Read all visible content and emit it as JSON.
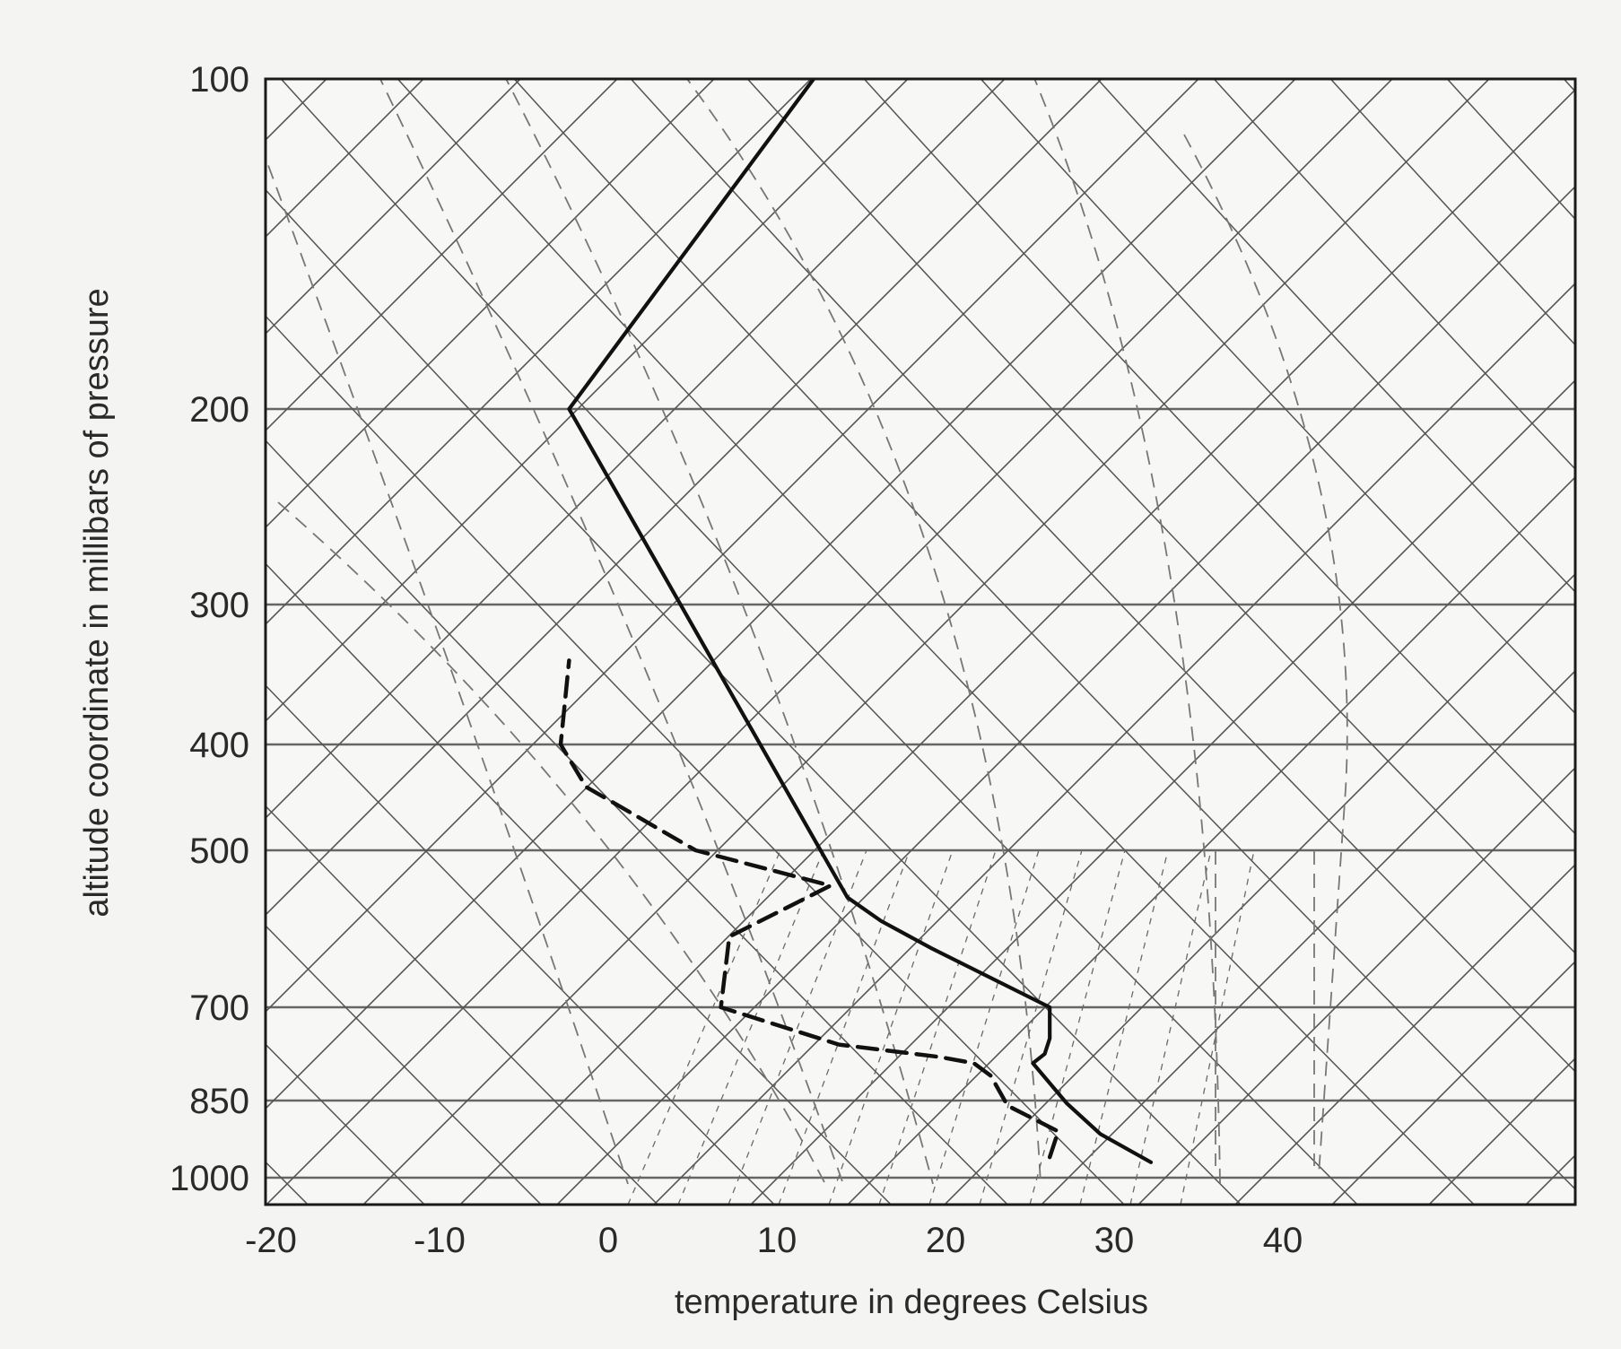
{
  "chart_data": {
    "type": "line",
    "title": "",
    "xlabel": "temperature in degrees Celsius",
    "ylabel": "altitude coordinate in millibars of pressure",
    "xlim": [
      -20,
      50
    ],
    "ylim": [
      1000,
      100
    ],
    "x_ticks": [
      -20,
      -10,
      0,
      10,
      20,
      30,
      40
    ],
    "y_ticks": [
      100,
      200,
      300,
      400,
      500,
      700,
      850,
      1000
    ],
    "y_scale": "skew-T log-p (pressure levels)",
    "grid": true,
    "colors": {
      "background": "#f4f4f2",
      "frame": "#1a1a1a",
      "grid": "#555555",
      "dashed_grid": "#777777",
      "temperature_line": "#111111",
      "dewpoint_line": "#111111"
    },
    "series": [
      {
        "style": "solid",
        "points": [
          {
            "t": 32.5,
            "p": 970
          },
          {
            "t": 29.5,
            "p": 915
          },
          {
            "t": 27.5,
            "p": 855
          },
          {
            "t": 25.5,
            "p": 790
          },
          {
            "t": 26.2,
            "p": 775
          },
          {
            "t": 26.5,
            "p": 750
          },
          {
            "t": 26.5,
            "p": 700
          },
          {
            "t": 19.5,
            "p": 625
          },
          {
            "t": 16.5,
            "p": 590
          },
          {
            "t": 14.5,
            "p": 560
          },
          {
            "t": -2.0,
            "p": 200
          },
          {
            "t": 12.5,
            "p": 100
          }
        ]
      },
      {
        "style": "dashed",
        "points": [
          {
            "t": 26.5,
            "p": 960
          },
          {
            "t": 27.0,
            "p": 910
          },
          {
            "t": 24.0,
            "p": 860
          },
          {
            "t": 23.0,
            "p": 810
          },
          {
            "t": 22.0,
            "p": 790
          },
          {
            "t": 20.0,
            "p": 780
          },
          {
            "t": 14.0,
            "p": 760
          },
          {
            "t": 7.0,
            "p": 700
          },
          {
            "t": 7.5,
            "p": 610
          },
          {
            "t": 13.5,
            "p": 545
          },
          {
            "t": 5.5,
            "p": 500
          },
          {
            "t": -1.0,
            "p": 440
          },
          {
            "t": -2.5,
            "p": 400
          },
          {
            "t": -2.0,
            "p": 340
          }
        ]
      }
    ]
  }
}
